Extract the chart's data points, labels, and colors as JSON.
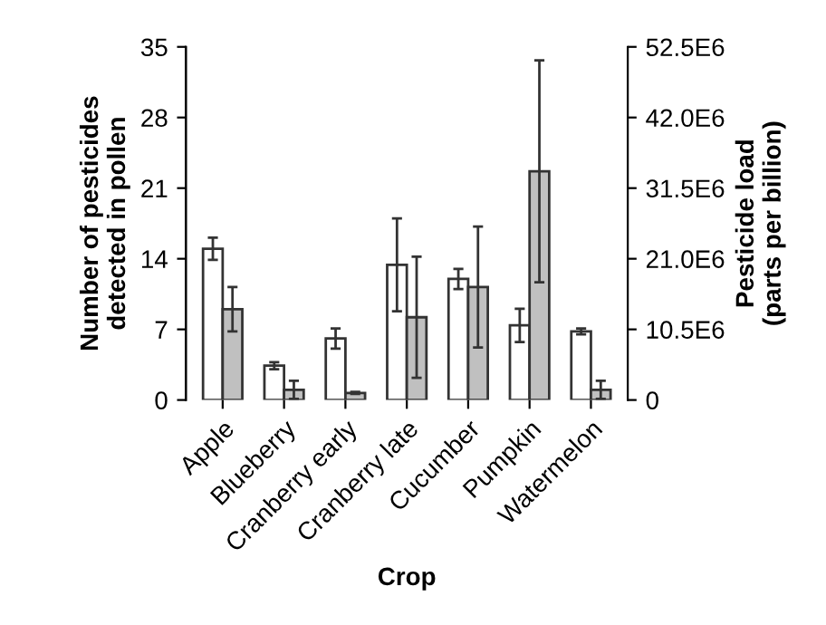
{
  "chart_data": {
    "type": "bar",
    "xlabel": "Crop",
    "ylabel": "Number of pesticides\ndetected in pollen",
    "y2label": "Pesticide load\n(parts per billion)",
    "categories": [
      "Apple",
      "Blueberry",
      "Cranberry early",
      "Cranberry late",
      "Cucumber",
      "Pumpkin",
      "Watermelon"
    ],
    "series": [
      {
        "color": "#ffffff",
        "values": [
          15.0,
          3.4,
          6.1,
          13.4,
          12.0,
          7.4,
          6.8
        ],
        "errors": [
          1.1,
          0.35,
          1.0,
          4.6,
          1.0,
          1.65,
          0.3
        ]
      },
      {
        "color": "#c0c0c0",
        "axis": "y2",
        "values": [
          13500000,
          1500000,
          1050000,
          12300000,
          16800000,
          34000000,
          1500000
        ],
        "errors": [
          3300000,
          1350000,
          150000,
          9000000,
          9000000,
          16500000,
          1350000
        ]
      }
    ],
    "ylim": [
      0,
      35
    ],
    "yticks": [
      0,
      7,
      14,
      21,
      28,
      35
    ],
    "y2lim": [
      0,
      52500000
    ],
    "y2ticks": [
      {
        "value": 0,
        "label": "0"
      },
      {
        "value": 10500000,
        "label": "10.5E6"
      },
      {
        "value": 21000000,
        "label": "21.0E6"
      },
      {
        "value": 31500000,
        "label": "31.5E6"
      },
      {
        "value": 42000000,
        "label": "42.0E6"
      },
      {
        "value": 52500000,
        "label": "52.5E6"
      }
    ],
    "grid": false,
    "legend": false
  }
}
